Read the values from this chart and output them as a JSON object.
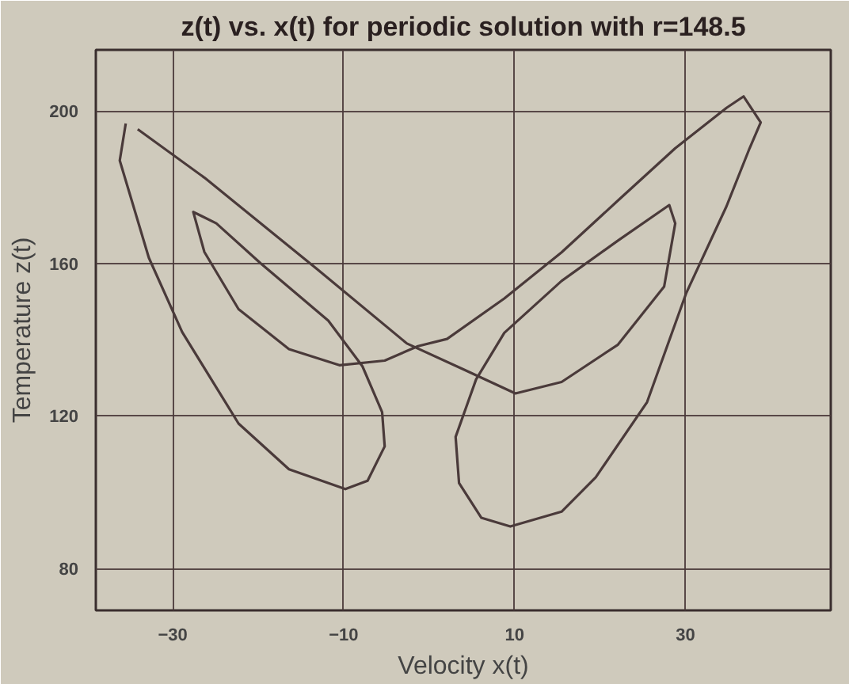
{
  "chart_data": {
    "type": "line",
    "title": "z(t) vs. x(t) for periodic solution with r=148.5",
    "xlabel": "Velocity x(t)",
    "ylabel": "Temperature z(t)",
    "xlim": [
      -39,
      47
    ],
    "ylim": [
      69,
      216
    ],
    "xticks": [
      -30,
      -10,
      10,
      30
    ],
    "yticks": [
      80,
      120,
      160,
      200
    ],
    "grid": true,
    "marker": "none",
    "line_style": "solid",
    "series": [
      {
        "color": "#4a3a3a",
        "x": [
          -34.1,
          -26.3,
          -13.1,
          -2.6,
          4.2,
          10.1,
          15.5,
          22.1,
          27.5,
          28.8,
          28.1,
          22.1,
          15.5,
          8.8,
          5.5,
          3.1,
          3.5,
          6.1,
          9.5,
          15.5,
          19.5,
          25.5,
          30.1,
          34.8,
          37.5,
          38.8,
          36.8,
          34.8,
          28.8,
          22.1,
          15.5,
          8.8,
          2.1,
          -1.3,
          -5.2,
          -10.5,
          -16.4,
          -22.3,
          -26.3,
          -27.6,
          -24.9,
          -19.7,
          -11.8,
          -7.8,
          -5.5,
          -5.2,
          -7.2,
          -9.8,
          -16.4,
          -22.3,
          -28.9,
          -32.8,
          -36.2,
          -35.5
        ],
        "values": [
          195.2,
          182.5,
          158.5,
          139,
          132,
          125.9,
          128.9,
          138.7,
          153.9,
          170.5,
          175.3,
          166,
          155.4,
          141.8,
          129.6,
          114.5,
          102.4,
          93.3,
          91,
          94.9,
          103.9,
          123.6,
          152.3,
          175,
          190.2,
          197,
          203.8,
          200.8,
          190.2,
          176.5,
          162.9,
          150.8,
          140.2,
          138.3,
          134.5,
          133.3,
          137.5,
          148,
          163,
          173.5,
          170.5,
          160,
          145,
          133,
          121,
          112,
          103,
          100.8,
          106,
          118,
          142,
          161.5,
          187,
          196.7
        ]
      }
    ]
  }
}
